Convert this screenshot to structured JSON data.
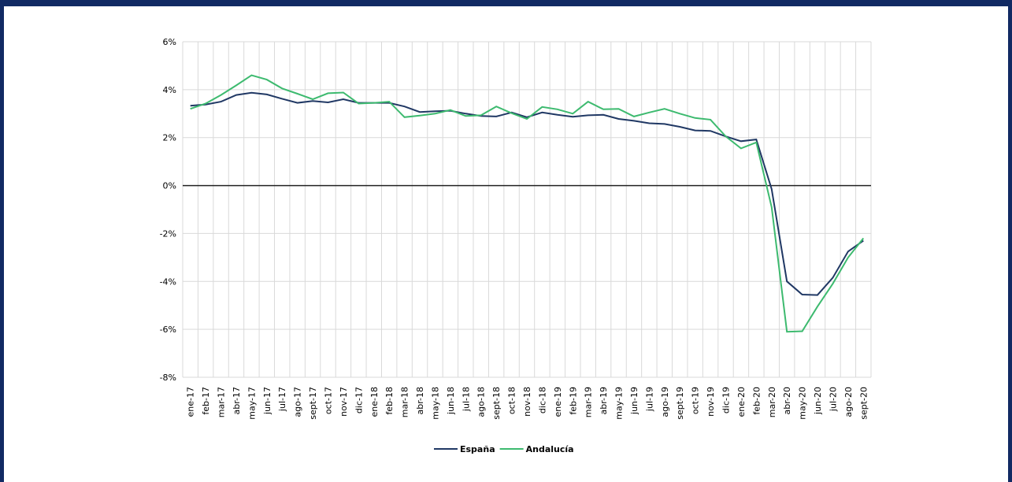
{
  "chart_data": {
    "type": "line",
    "categories": [
      "ene-17",
      "feb-17",
      "mar-17",
      "abr-17",
      "may-17",
      "jun-17",
      "jul-17",
      "ago-17",
      "sept-17",
      "oct-17",
      "nov-17",
      "dic-17",
      "ene-18",
      "feb-18",
      "mar-18",
      "abr-18",
      "may-18",
      "jun-18",
      "jul-18",
      "ago-18",
      "sept-18",
      "oct-18",
      "nov-18",
      "dic-18",
      "ene-19",
      "feb-19",
      "mar-19",
      "abr-19",
      "may-19",
      "jun-19",
      "jul-19",
      "ago-19",
      "sept-19",
      "oct-19",
      "nov-19",
      "dic-19",
      "ene-20",
      "feb-20",
      "mar-20",
      "abr-20",
      "may-20",
      "jun-20",
      "jul-20",
      "ago-20",
      "sept-20"
    ],
    "series": [
      {
        "name": "España",
        "color": "#203864",
        "values": [
          3.33,
          3.38,
          3.5,
          3.78,
          3.87,
          3.8,
          3.62,
          3.45,
          3.53,
          3.47,
          3.6,
          3.45,
          3.45,
          3.45,
          3.3,
          3.07,
          3.1,
          3.12,
          3.0,
          2.9,
          2.88,
          3.05,
          2.85,
          3.05,
          2.95,
          2.87,
          2.93,
          2.95,
          2.78,
          2.7,
          2.6,
          2.57,
          2.45,
          2.3,
          2.28,
          2.05,
          1.85,
          1.92,
          -0.15,
          -4.0,
          -4.55,
          -4.57,
          -3.85,
          -2.75,
          -2.3
        ]
      },
      {
        "name": "Andalucía",
        "color": "#3dba6f",
        "values": [
          3.2,
          3.42,
          3.78,
          4.18,
          4.6,
          4.42,
          4.05,
          3.83,
          3.6,
          3.85,
          3.88,
          3.42,
          3.45,
          3.5,
          2.85,
          2.92,
          3.0,
          3.15,
          2.9,
          2.93,
          3.3,
          3.02,
          2.78,
          3.28,
          3.18,
          3.0,
          3.5,
          3.18,
          3.2,
          2.88,
          3.05,
          3.2,
          3.0,
          2.82,
          2.75,
          2.05,
          1.55,
          1.8,
          -0.9,
          -6.1,
          -6.08,
          -5.05,
          -4.1,
          -3.0,
          -2.2
        ]
      }
    ],
    "ylim": [
      -8,
      6
    ],
    "yticks": [
      {
        "value": -8,
        "label": "-8%"
      },
      {
        "value": -6,
        "label": "-6%"
      },
      {
        "value": -4,
        "label": "-4%"
      },
      {
        "value": -2,
        "label": "-2%"
      },
      {
        "value": 0,
        "label": "0%"
      },
      {
        "value": 2,
        "label": "2%"
      },
      {
        "value": 4,
        "label": "4%"
      },
      {
        "value": 6,
        "label": "6%"
      }
    ],
    "grid": true,
    "legend": "bottom"
  }
}
